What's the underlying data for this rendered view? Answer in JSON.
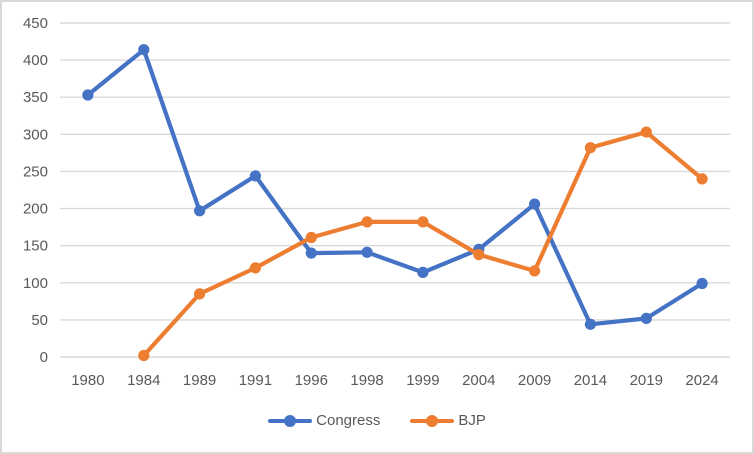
{
  "chart_data": {
    "type": "line",
    "categories": [
      "1980",
      "1984",
      "1989",
      "1991",
      "1996",
      "1998",
      "1999",
      "2004",
      "2009",
      "2014",
      "2019",
      "2024"
    ],
    "series": [
      {
        "name": "Congress",
        "color": "#4472C4",
        "values": [
          353,
          414,
          197,
          244,
          140,
          141,
          114,
          145,
          206,
          44,
          52,
          99
        ]
      },
      {
        "name": "BJP",
        "color": "#ED7D31",
        "values": [
          null,
          2,
          85,
          120,
          161,
          182,
          182,
          138,
          116,
          282,
          303,
          240
        ]
      }
    ],
    "title": "",
    "xlabel": "",
    "ylabel": "",
    "ylim": [
      0,
      450
    ],
    "ytick_step": 50,
    "grid": true,
    "legend_position": "bottom",
    "colors": {
      "gridline": "#D9D9D9",
      "axis_text": "#595959",
      "background": "#FFFFFF",
      "border": "#D8D8D8"
    }
  }
}
